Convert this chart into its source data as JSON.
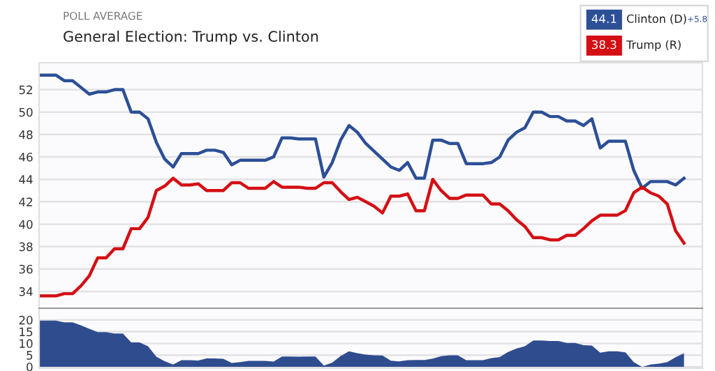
{
  "chart_data": [
    {
      "type": "line",
      "subtitle": "POLL AVERAGE",
      "annotations": [
        "44.1",
        "38.3",
        "+5.8"
      ],
      "title": "General Election: Trump vs. Clinton",
      "categories": [
        null,
        null,
        null,
        null,
        null,
        null,
        null,
        null,
        null,
        null,
        null,
        null,
        null,
        null,
        null,
        null,
        null,
        null,
        null,
        null,
        null,
        null,
        null,
        null,
        null,
        null,
        null,
        null,
        null,
        null,
        null,
        null,
        null,
        null,
        null,
        null,
        null,
        null,
        null,
        null,
        null,
        null,
        null,
        null,
        null,
        null,
        null,
        null,
        null,
        null,
        null,
        null,
        null,
        null,
        null,
        null,
        null,
        null,
        null,
        null,
        null,
        null,
        null,
        null,
        null,
        null,
        null,
        null,
        null,
        null,
        null,
        null,
        null,
        null,
        null,
        null,
        null,
        null
      ],
      "series": [
        {
          "name": "Clinton (D)",
          "color": "#2c4f96",
          "values": [
            53.3,
            53.3,
            53.3,
            52.8,
            52.8,
            52.2,
            51.6,
            51.8,
            51.8,
            52.0,
            52.0,
            50.0,
            50.0,
            49.4,
            47.3,
            45.8,
            45.1,
            46.3,
            46.3,
            46.3,
            46.6,
            46.6,
            46.4,
            45.3,
            45.7,
            45.7,
            45.7,
            45.7,
            46.0,
            47.7,
            47.7,
            47.6,
            47.6,
            47.6,
            44.2,
            45.5,
            47.5,
            48.8,
            48.2,
            47.2,
            46.5,
            45.8,
            45.1,
            44.8,
            45.5,
            44.1,
            44.1,
            47.5,
            47.5,
            47.2,
            47.2,
            45.4,
            45.4,
            45.4,
            45.5,
            46.0,
            47.5,
            48.2,
            48.6,
            50.0,
            50.0,
            49.6,
            49.6,
            49.2,
            49.2,
            48.8,
            49.4,
            46.8,
            47.4,
            47.4,
            47.4,
            44.8,
            43.2,
            43.8,
            43.8,
            43.8,
            43.5,
            44.1
          ],
          "value_labels": [
            null,
            null,
            null,
            null,
            null,
            null,
            null,
            null,
            null,
            null,
            null,
            null,
            null,
            null,
            null,
            null,
            null,
            null,
            null,
            null,
            null,
            null,
            null,
            null,
            null,
            null,
            null,
            null,
            null,
            null,
            null,
            null,
            null,
            null,
            null,
            null,
            null,
            null,
            null,
            null,
            null,
            null,
            null,
            null,
            null,
            null,
            null,
            null,
            null,
            null,
            null,
            null,
            null,
            null,
            null,
            null,
            null,
            null,
            null,
            null,
            null,
            null,
            null,
            null,
            null,
            null,
            null,
            null,
            null,
            null,
            null,
            null,
            null,
            null,
            null,
            null,
            null,
            null
          ]
        },
        {
          "name": "Trump (R)",
          "color": "#d40f14",
          "values": [
            33.6,
            33.6,
            33.6,
            33.8,
            33.8,
            34.5,
            35.4,
            37.0,
            37.0,
            37.8,
            37.8,
            39.6,
            39.6,
            40.6,
            43.0,
            43.4,
            44.1,
            43.5,
            43.5,
            43.6,
            43.0,
            43.0,
            43.0,
            43.7,
            43.7,
            43.2,
            43.2,
            43.2,
            43.8,
            43.3,
            43.3,
            43.3,
            43.2,
            43.2,
            43.7,
            43.7,
            42.9,
            42.2,
            42.4,
            42.0,
            41.6,
            41.0,
            42.5,
            42.5,
            42.7,
            41.2,
            41.2,
            44.0,
            43.0,
            42.3,
            42.3,
            42.6,
            42.6,
            42.6,
            41.8,
            41.8,
            41.2,
            40.4,
            39.8,
            38.8,
            38.8,
            38.6,
            38.6,
            39.0,
            39.0,
            39.6,
            40.3,
            40.8,
            40.8,
            40.8,
            41.2,
            42.8,
            43.3,
            42.8,
            42.5,
            41.8,
            39.4,
            38.3
          ],
          "value_labels": [
            null,
            null,
            null,
            null,
            null,
            null,
            null,
            null,
            null,
            null,
            null,
            null,
            null,
            null,
            null,
            null,
            null,
            null,
            null,
            null,
            null,
            null,
            null,
            null,
            null,
            null,
            null,
            null,
            null,
            null,
            null,
            null,
            null,
            null,
            null,
            null,
            null,
            null,
            null,
            null,
            null,
            null,
            null,
            null,
            null,
            null,
            null,
            null,
            null,
            null,
            null,
            null,
            null,
            null,
            null,
            null,
            null,
            null,
            null,
            null,
            null,
            null,
            null,
            null,
            null,
            null,
            null,
            null,
            null,
            null,
            null,
            null,
            null,
            null,
            null,
            null,
            null,
            null
          ]
        }
      ],
      "ylim": [
        32.5,
        54.4
      ],
      "yticks": [
        34,
        36,
        38,
        40,
        42,
        44,
        46,
        48,
        50,
        52
      ],
      "grid": "y",
      "legend": "top right",
      "tick_labels": "y",
      "marker": "none",
      "line_style": "solid"
    },
    {
      "type": "area",
      "categories": [
        null,
        null,
        null,
        null,
        null,
        null,
        null,
        null,
        null,
        null,
        null,
        null,
        null,
        null,
        null,
        null,
        null,
        null,
        null,
        null,
        null,
        null,
        null,
        null,
        null,
        null,
        null,
        null,
        null,
        null,
        null,
        null,
        null,
        null,
        null,
        null,
        null,
        null,
        null,
        null,
        null,
        null,
        null,
        null,
        null,
        null,
        null,
        null,
        null,
        null,
        null,
        null,
        null,
        null,
        null,
        null,
        null,
        null,
        null,
        null,
        null,
        null,
        null,
        null,
        null,
        null,
        null,
        null,
        null,
        null,
        null,
        null,
        null,
        null,
        null,
        null,
        null,
        null
      ],
      "series": [
        {
          "color": "#2f4c8f",
          "values": [
            19.7,
            19.7,
            19.7,
            19.0,
            19.0,
            17.7,
            16.2,
            14.8,
            14.8,
            14.2,
            14.2,
            10.4,
            10.4,
            8.8,
            4.3,
            2.4,
            1.0,
            2.8,
            2.8,
            2.7,
            3.6,
            3.6,
            3.4,
            1.6,
            2.0,
            2.5,
            2.5,
            2.5,
            2.2,
            4.4,
            4.4,
            4.3,
            4.4,
            4.4,
            0.5,
            1.8,
            4.6,
            6.6,
            5.8,
            5.2,
            4.9,
            4.8,
            2.6,
            2.3,
            2.8,
            2.9,
            2.9,
            3.5,
            4.5,
            4.9,
            4.9,
            2.8,
            2.8,
            2.8,
            3.7,
            4.2,
            6.3,
            7.8,
            8.8,
            11.2,
            11.2,
            11.0,
            11.0,
            10.2,
            10.2,
            9.2,
            9.1,
            6.0,
            6.6,
            6.6,
            6.2,
            2.0,
            -0.1,
            1.0,
            1.3,
            2.0,
            4.1,
            5.8
          ]
        }
      ],
      "ylim": [
        -0.6,
        25
      ],
      "yticks": [
        0,
        5,
        10,
        15,
        20
      ],
      "grid": "y",
      "tick_labels": "y"
    }
  ]
}
